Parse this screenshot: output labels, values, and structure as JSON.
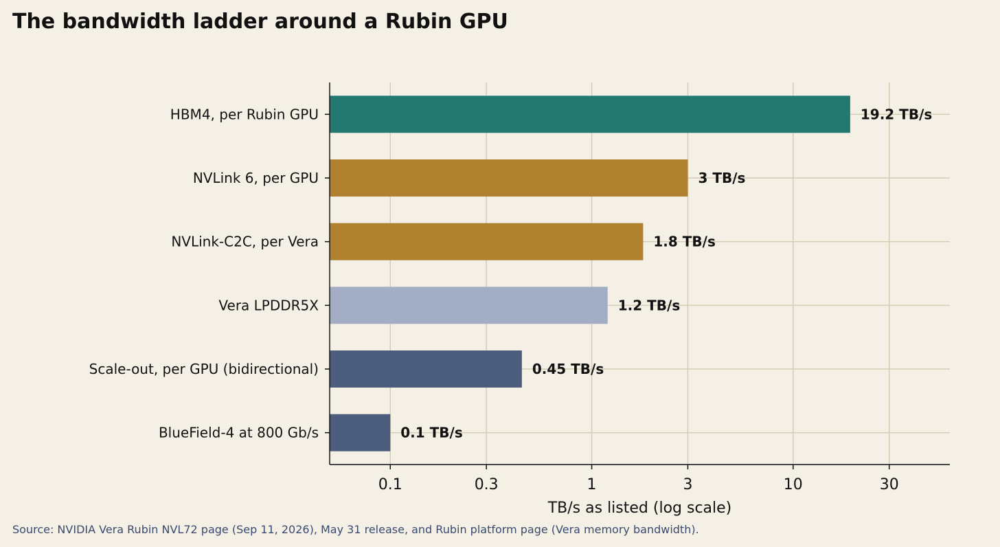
{
  "chart_data": {
    "type": "bar",
    "orientation": "horizontal",
    "title": "The bandwidth ladder around a Rubin GPU",
    "xlabel": "TB/s as listed (log scale)",
    "ylabel": "",
    "xscale": "log",
    "xlim": [
      0.05,
      60
    ],
    "xticks": [
      0.1,
      0.3,
      1,
      3,
      10,
      30
    ],
    "xtick_labels": [
      "0.1",
      "0.3",
      "1",
      "3",
      "10",
      "30"
    ],
    "grid": true,
    "categories": [
      "HBM4, per Rubin GPU",
      "NVLink 6, per GPU",
      "NVLink-C2C, per Vera",
      "Vera LPDDR5X",
      "Scale-out, per GPU (bidirectional)",
      "BlueField-4 at 800 Gb/s"
    ],
    "values": [
      19.2,
      3,
      1.8,
      1.2,
      0.45,
      0.1
    ],
    "value_labels": [
      "19.2 TB/s",
      "3 TB/s",
      "1.8 TB/s",
      "1.2 TB/s",
      "0.45 TB/s",
      "0.1 TB/s"
    ],
    "colors": [
      "#237870",
      "#b0812e",
      "#b0812e",
      "#a3adc4",
      "#4b5c7c",
      "#4b5c7c"
    ],
    "source": "Source: NVIDIA Vera Rubin NVL72 page (Sep 11, 2026), May 31 release, and Rubin platform page (Vera memory bandwidth)."
  }
}
